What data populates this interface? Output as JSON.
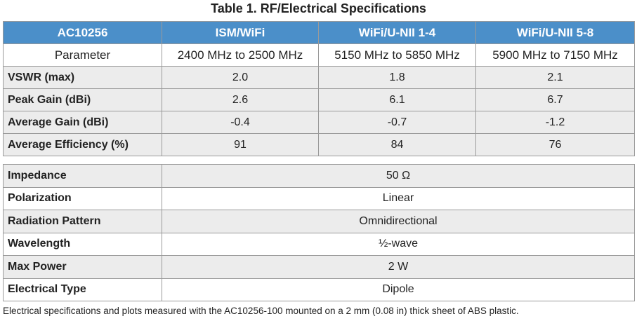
{
  "title": "Table 1.  RF/Electrical Specifications",
  "table": {
    "header": [
      "AC10256",
      "ISM/WiFi",
      "WiFi/U-NII 1-4",
      "WiFi/U-NII 5-8"
    ],
    "rows": [
      [
        "Parameter",
        "2400 MHz to 2500 MHz",
        "5150 MHz to 5850 MHz",
        "5900 MHz to 7150 MHz"
      ],
      [
        "VSWR (max)",
        "2.0",
        "1.8",
        "2.1"
      ],
      [
        "Peak Gain (dBi)",
        "2.6",
        "6.1",
        "6.7"
      ],
      [
        "Average Gain (dBi)",
        "-0.4",
        "-0.7",
        "-1.2"
      ],
      [
        "Average Efficiency (%)",
        "91",
        "84",
        "76"
      ]
    ]
  },
  "table2": {
    "rows": [
      [
        "Impedance",
        "50 Ω"
      ],
      [
        "Polarization",
        "Linear"
      ],
      [
        "Radiation Pattern",
        "Omnidirectional"
      ],
      [
        "Wavelength",
        "½-wave"
      ],
      [
        "Max Power",
        "2 W"
      ],
      [
        "Electrical Type",
        "Dipole"
      ]
    ]
  },
  "footnote": "Electrical specifications and plots measured with the AC10256-100 mounted on a 2 mm (0.08 in) thick sheet of ABS plastic."
}
